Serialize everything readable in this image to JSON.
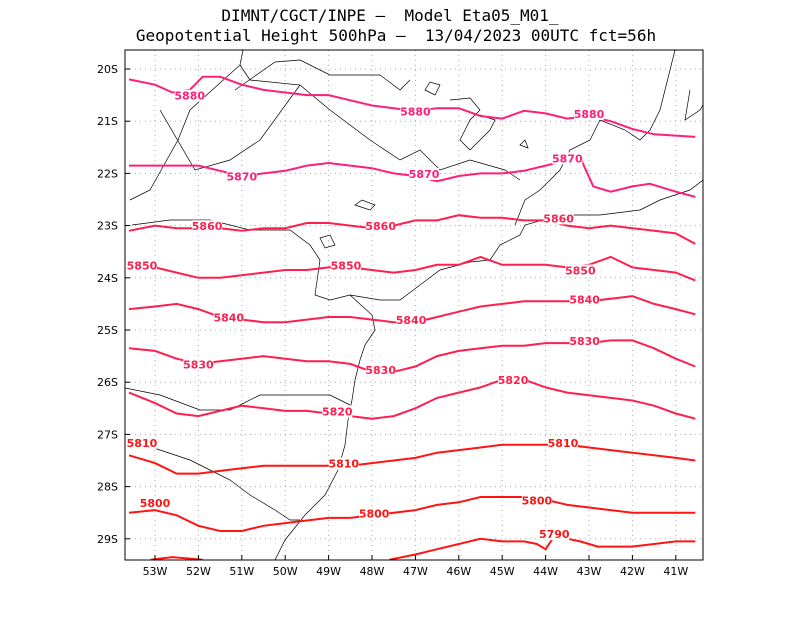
{
  "title": {
    "line1": "DIMNT/CGCT/INPE –  Model Eta05_M01_",
    "line2": "Geopotential Height 500hPa –  13/04/2023 00UTC fct=56h"
  },
  "axes": {
    "lat_ticks": [
      "20S",
      "21S",
      "22S",
      "23S",
      "24S",
      "25S",
      "26S",
      "27S",
      "28S",
      "29S"
    ],
    "lon_ticks": [
      "53W",
      "52W",
      "51W",
      "50W",
      "49W",
      "48W",
      "47W",
      "46W",
      "45W",
      "44W",
      "43W",
      "42W",
      "41W"
    ]
  },
  "colors": {
    "dark": "#ff1e7a",
    "mid": "#ff1f4f",
    "red": "#ff1414"
  },
  "contours": [
    {
      "value": "5880",
      "color": "#ff1e7a",
      "labels": [
        [
          -52.2,
          -20.55
        ],
        [
          -47.0,
          -20.85
        ],
        [
          -43.0,
          -20.9
        ]
      ],
      "pts": [
        [
          -53.6,
          -20.2
        ],
        [
          -53.0,
          -20.3
        ],
        [
          -52.6,
          -20.45
        ],
        [
          -52.2,
          -20.4
        ],
        [
          -51.9,
          -20.15
        ],
        [
          -51.5,
          -20.15
        ],
        [
          -51.0,
          -20.3
        ],
        [
          -50.5,
          -20.4
        ],
        [
          -50.0,
          -20.45
        ],
        [
          -49.5,
          -20.5
        ],
        [
          -49.0,
          -20.5
        ],
        [
          -48.5,
          -20.6
        ],
        [
          -48.0,
          -20.7
        ],
        [
          -47.5,
          -20.75
        ],
        [
          -47.0,
          -20.8
        ],
        [
          -46.5,
          -20.75
        ],
        [
          -46.0,
          -20.75
        ],
        [
          -45.5,
          -20.9
        ],
        [
          -45.0,
          -20.95
        ],
        [
          -44.5,
          -20.8
        ],
        [
          -44.0,
          -20.85
        ],
        [
          -43.5,
          -20.95
        ],
        [
          -43.0,
          -20.9
        ],
        [
          -42.5,
          -21.0
        ],
        [
          -42.0,
          -21.15
        ],
        [
          -41.5,
          -21.25
        ],
        [
          -40.55,
          -21.3
        ]
      ]
    },
    {
      "value": "5870",
      "color": "#ff1e7a",
      "labels": [
        [
          -51.0,
          -22.1
        ],
        [
          -46.8,
          -22.05
        ],
        [
          -43.5,
          -21.75
        ]
      ],
      "pts": [
        [
          -53.6,
          -21.85
        ],
        [
          -53.0,
          -21.85
        ],
        [
          -52.0,
          -21.85
        ],
        [
          -51.5,
          -21.95
        ],
        [
          -51.0,
          -22.05
        ],
        [
          -50.5,
          -22.0
        ],
        [
          -50.0,
          -21.95
        ],
        [
          -49.5,
          -21.85
        ],
        [
          -49.0,
          -21.8
        ],
        [
          -48.5,
          -21.85
        ],
        [
          -48.0,
          -21.9
        ],
        [
          -47.5,
          -22.0
        ],
        [
          -47.0,
          -22.05
        ],
        [
          -46.5,
          -22.15
        ],
        [
          -46.0,
          -22.05
        ],
        [
          -45.5,
          -22.0
        ],
        [
          -45.0,
          -22.0
        ],
        [
          -44.5,
          -21.95
        ],
        [
          -44.0,
          -21.85
        ],
        [
          -43.5,
          -21.75
        ],
        [
          -43.2,
          -21.7
        ],
        [
          -42.9,
          -22.25
        ],
        [
          -42.5,
          -22.35
        ],
        [
          -42.0,
          -22.25
        ],
        [
          -41.6,
          -22.2
        ],
        [
          -41.0,
          -22.35
        ],
        [
          -40.55,
          -22.45
        ]
      ]
    },
    {
      "value": "5860",
      "color": "#ff1f4f",
      "labels": [
        [
          -51.8,
          -23.05
        ],
        [
          -47.8,
          -23.05
        ],
        [
          -43.7,
          -22.9
        ]
      ],
      "pts": [
        [
          -53.6,
          -23.1
        ],
        [
          -53.0,
          -23.0
        ],
        [
          -52.5,
          -23.05
        ],
        [
          -52.0,
          -23.05
        ],
        [
          -51.5,
          -23.05
        ],
        [
          -51.0,
          -23.1
        ],
        [
          -50.5,
          -23.05
        ],
        [
          -50.0,
          -23.05
        ],
        [
          -49.5,
          -22.95
        ],
        [
          -49.0,
          -22.95
        ],
        [
          -48.5,
          -23.0
        ],
        [
          -48.0,
          -23.05
        ],
        [
          -47.5,
          -23.0
        ],
        [
          -47.0,
          -22.9
        ],
        [
          -46.5,
          -22.9
        ],
        [
          -46.0,
          -22.8
        ],
        [
          -45.5,
          -22.85
        ],
        [
          -45.0,
          -22.85
        ],
        [
          -44.5,
          -22.9
        ],
        [
          -44.0,
          -22.9
        ],
        [
          -43.5,
          -23.0
        ],
        [
          -43.0,
          -23.05
        ],
        [
          -42.5,
          -23.0
        ],
        [
          -42.0,
          -23.05
        ],
        [
          -41.5,
          -23.1
        ],
        [
          -41.0,
          -23.15
        ],
        [
          -40.55,
          -23.35
        ]
      ]
    },
    {
      "value": "5850",
      "color": "#ff1f4f",
      "labels": [
        [
          -53.3,
          -23.8
        ],
        [
          -48.6,
          -23.8
        ],
        [
          -43.2,
          -23.9
        ]
      ],
      "pts": [
        [
          -53.6,
          -23.8
        ],
        [
          -53.0,
          -23.8
        ],
        [
          -52.5,
          -23.9
        ],
        [
          -52.0,
          -24.0
        ],
        [
          -51.5,
          -24.0
        ],
        [
          -51.0,
          -23.95
        ],
        [
          -50.5,
          -23.9
        ],
        [
          -50.0,
          -23.85
        ],
        [
          -49.5,
          -23.85
        ],
        [
          -49.0,
          -23.8
        ],
        [
          -48.5,
          -23.8
        ],
        [
          -48.0,
          -23.85
        ],
        [
          -47.5,
          -23.9
        ],
        [
          -47.0,
          -23.85
        ],
        [
          -46.5,
          -23.75
        ],
        [
          -46.0,
          -23.75
        ],
        [
          -45.5,
          -23.6
        ],
        [
          -45.0,
          -23.75
        ],
        [
          -44.5,
          -23.75
        ],
        [
          -44.0,
          -23.75
        ],
        [
          -43.5,
          -23.8
        ],
        [
          -43.0,
          -23.75
        ],
        [
          -42.5,
          -23.6
        ],
        [
          -42.0,
          -23.8
        ],
        [
          -41.5,
          -23.85
        ],
        [
          -41.0,
          -23.9
        ],
        [
          -40.55,
          -24.05
        ]
      ]
    },
    {
      "value": "5840",
      "color": "#ff1f4f",
      "labels": [
        [
          -51.3,
          -24.8
        ],
        [
          -47.1,
          -24.85
        ],
        [
          -43.1,
          -24.45
        ]
      ],
      "pts": [
        [
          -53.6,
          -24.6
        ],
        [
          -53.0,
          -24.55
        ],
        [
          -52.5,
          -24.5
        ],
        [
          -52.0,
          -24.6
        ],
        [
          -51.5,
          -24.75
        ],
        [
          -51.0,
          -24.8
        ],
        [
          -50.5,
          -24.85
        ],
        [
          -50.0,
          -24.85
        ],
        [
          -49.5,
          -24.8
        ],
        [
          -49.0,
          -24.75
        ],
        [
          -48.5,
          -24.75
        ],
        [
          -48.0,
          -24.8
        ],
        [
          -47.5,
          -24.85
        ],
        [
          -47.0,
          -24.85
        ],
        [
          -46.5,
          -24.75
        ],
        [
          -46.0,
          -24.65
        ],
        [
          -45.5,
          -24.55
        ],
        [
          -45.0,
          -24.5
        ],
        [
          -44.5,
          -24.45
        ],
        [
          -44.0,
          -24.45
        ],
        [
          -43.5,
          -24.45
        ],
        [
          -43.0,
          -24.45
        ],
        [
          -42.5,
          -24.4
        ],
        [
          -42.0,
          -24.35
        ],
        [
          -41.5,
          -24.5
        ],
        [
          -41.0,
          -24.6
        ],
        [
          -40.55,
          -24.7
        ]
      ]
    },
    {
      "value": "5830",
      "color": "#ff1f4f",
      "labels": [
        [
          -52.0,
          -25.7
        ],
        [
          -47.8,
          -25.8
        ],
        [
          -43.1,
          -25.25
        ]
      ],
      "pts": [
        [
          -53.6,
          -25.35
        ],
        [
          -53.0,
          -25.4
        ],
        [
          -52.5,
          -25.55
        ],
        [
          -52.0,
          -25.65
        ],
        [
          -51.5,
          -25.6
        ],
        [
          -51.0,
          -25.55
        ],
        [
          -50.5,
          -25.5
        ],
        [
          -50.0,
          -25.55
        ],
        [
          -49.5,
          -25.6
        ],
        [
          -49.0,
          -25.6
        ],
        [
          -48.5,
          -25.65
        ],
        [
          -48.0,
          -25.8
        ],
        [
          -47.5,
          -25.8
        ],
        [
          -47.0,
          -25.7
        ],
        [
          -46.5,
          -25.5
        ],
        [
          -46.0,
          -25.4
        ],
        [
          -45.5,
          -25.35
        ],
        [
          -45.0,
          -25.3
        ],
        [
          -44.5,
          -25.3
        ],
        [
          -44.0,
          -25.25
        ],
        [
          -43.5,
          -25.25
        ],
        [
          -43.0,
          -25.25
        ],
        [
          -42.5,
          -25.2
        ],
        [
          -42.0,
          -25.2
        ],
        [
          -41.5,
          -25.35
        ],
        [
          -41.0,
          -25.55
        ],
        [
          -40.55,
          -25.7
        ]
      ]
    },
    {
      "value": "5820",
      "color": "#ff1f4f",
      "labels": [
        [
          -48.8,
          -26.6
        ],
        [
          -44.75,
          -26.0
        ]
      ],
      "pts": [
        [
          -53.6,
          -26.2
        ],
        [
          -53.0,
          -26.4
        ],
        [
          -52.5,
          -26.6
        ],
        [
          -52.0,
          -26.65
        ],
        [
          -51.5,
          -26.55
        ],
        [
          -51.0,
          -26.45
        ],
        [
          -50.5,
          -26.5
        ],
        [
          -50.0,
          -26.55
        ],
        [
          -49.5,
          -26.55
        ],
        [
          -49.0,
          -26.6
        ],
        [
          -48.5,
          -26.65
        ],
        [
          -48.0,
          -26.7
        ],
        [
          -47.5,
          -26.65
        ],
        [
          -47.0,
          -26.5
        ],
        [
          -46.5,
          -26.3
        ],
        [
          -46.0,
          -26.2
        ],
        [
          -45.5,
          -26.1
        ],
        [
          -45.0,
          -25.95
        ],
        [
          -44.5,
          -25.95
        ],
        [
          -44.0,
          -26.1
        ],
        [
          -43.5,
          -26.2
        ],
        [
          -43.0,
          -26.25
        ],
        [
          -42.5,
          -26.3
        ],
        [
          -42.0,
          -26.35
        ],
        [
          -41.5,
          -26.45
        ],
        [
          -41.0,
          -26.6
        ],
        [
          -40.55,
          -26.7
        ]
      ]
    },
    {
      "value": "5810",
      "color": "#ff1414",
      "labels": [
        [
          -53.3,
          -27.2
        ],
        [
          -48.65,
          -27.6
        ],
        [
          -43.6,
          -27.2
        ]
      ],
      "pts": [
        [
          -53.6,
          -27.4
        ],
        [
          -53.0,
          -27.55
        ],
        [
          -52.5,
          -27.75
        ],
        [
          -52.0,
          -27.75
        ],
        [
          -51.5,
          -27.7
        ],
        [
          -51.0,
          -27.65
        ],
        [
          -50.5,
          -27.6
        ],
        [
          -50.0,
          -27.6
        ],
        [
          -49.5,
          -27.6
        ],
        [
          -49.0,
          -27.6
        ],
        [
          -48.5,
          -27.6
        ],
        [
          -48.0,
          -27.55
        ],
        [
          -47.5,
          -27.5
        ],
        [
          -47.0,
          -27.45
        ],
        [
          -46.5,
          -27.35
        ],
        [
          -46.0,
          -27.3
        ],
        [
          -45.5,
          -27.25
        ],
        [
          -45.0,
          -27.2
        ],
        [
          -44.5,
          -27.2
        ],
        [
          -44.0,
          -27.2
        ],
        [
          -43.5,
          -27.2
        ],
        [
          -43.0,
          -27.25
        ],
        [
          -42.5,
          -27.3
        ],
        [
          -42.0,
          -27.35
        ],
        [
          -41.5,
          -27.4
        ],
        [
          -41.0,
          -27.45
        ],
        [
          -40.55,
          -27.5
        ]
      ]
    },
    {
      "value": "5800",
      "color": "#ff1414",
      "labels": [
        [
          -53.0,
          -28.35
        ],
        [
          -47.95,
          -28.55
        ],
        [
          -44.2,
          -28.3
        ]
      ],
      "pts": [
        [
          -53.6,
          -28.5
        ],
        [
          -53.0,
          -28.45
        ],
        [
          -52.5,
          -28.55
        ],
        [
          -52.0,
          -28.75
        ],
        [
          -51.5,
          -28.85
        ],
        [
          -51.0,
          -28.85
        ],
        [
          -50.5,
          -28.75
        ],
        [
          -50.0,
          -28.7
        ],
        [
          -49.5,
          -28.65
        ],
        [
          -49.0,
          -28.6
        ],
        [
          -48.5,
          -28.6
        ],
        [
          -48.0,
          -28.55
        ],
        [
          -47.5,
          -28.5
        ],
        [
          -47.0,
          -28.45
        ],
        [
          -46.5,
          -28.35
        ],
        [
          -46.0,
          -28.3
        ],
        [
          -45.5,
          -28.2
        ],
        [
          -45.0,
          -28.2
        ],
        [
          -44.5,
          -28.2
        ],
        [
          -44.0,
          -28.25
        ],
        [
          -43.5,
          -28.35
        ],
        [
          -43.0,
          -28.4
        ],
        [
          -42.5,
          -28.45
        ],
        [
          -42.0,
          -28.5
        ],
        [
          -41.5,
          -28.5
        ],
        [
          -41.0,
          -28.5
        ],
        [
          -40.55,
          -28.5
        ]
      ]
    },
    {
      "value": "5790",
      "color": "#ff1414",
      "labels": [
        [
          -43.8,
          -28.95
        ]
      ],
      "pts": [
        [
          -47.6,
          -29.4
        ],
        [
          -47.0,
          -29.3
        ],
        [
          -46.5,
          -29.2
        ],
        [
          -46.0,
          -29.1
        ],
        [
          -45.5,
          -29.0
        ],
        [
          -45.0,
          -29.05
        ],
        [
          -44.5,
          -29.05
        ],
        [
          -44.2,
          -29.1
        ],
        [
          -44.0,
          -29.2
        ],
        [
          -43.8,
          -28.95
        ],
        [
          -43.5,
          -29.0
        ],
        [
          -43.2,
          -29.05
        ],
        [
          -42.8,
          -29.15
        ],
        [
          -42.0,
          -29.15
        ],
        [
          -41.5,
          -29.1
        ],
        [
          -41.0,
          -29.05
        ],
        [
          -40.55,
          -29.05
        ]
      ]
    },
    {
      "value": "",
      "color": "#ff1414",
      "labels": [],
      "pts": [
        [
          -53.1,
          -29.4
        ],
        [
          -52.6,
          -29.35
        ],
        [
          -52.2,
          -29.38
        ],
        [
          -51.9,
          -29.4
        ]
      ]
    }
  ]
}
